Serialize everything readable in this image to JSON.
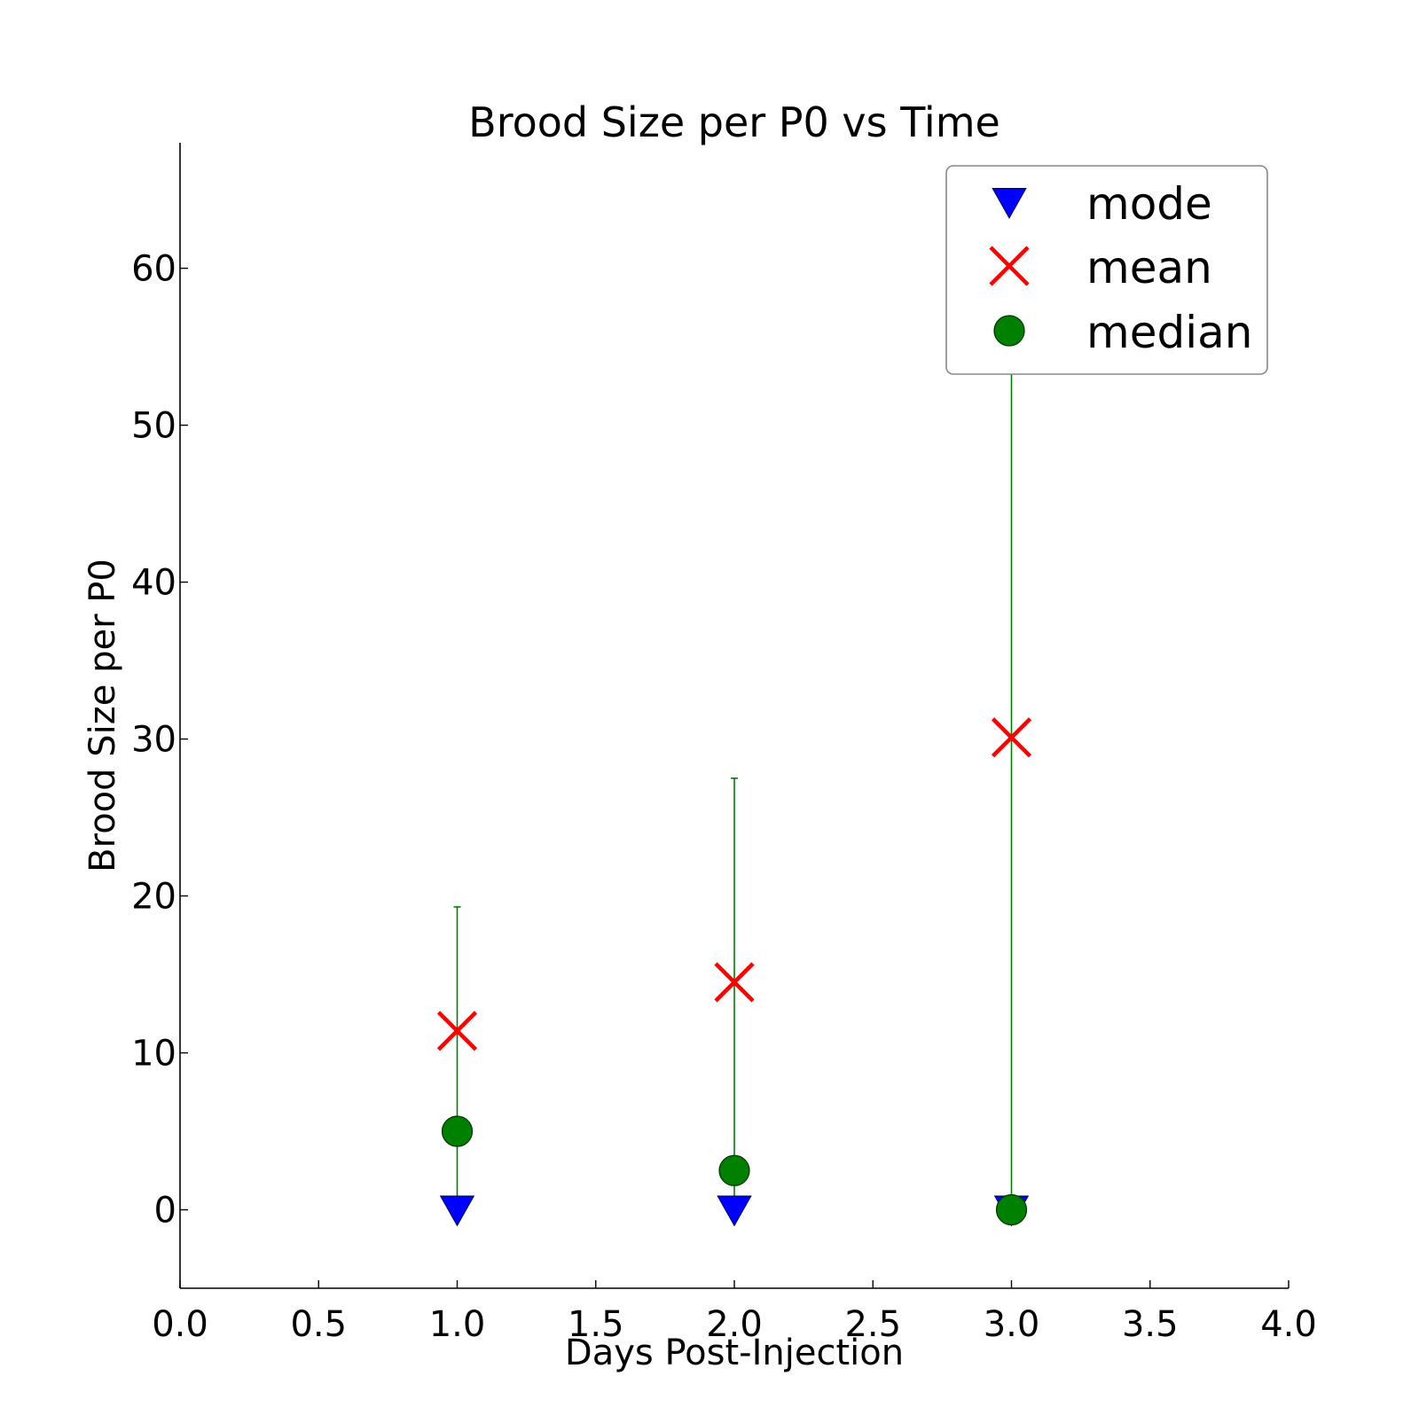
{
  "chart_data": {
    "type": "scatter",
    "title": "Brood Size per P0 vs Time",
    "xlabel": "Days Post-Injection",
    "ylabel": "Brood Size per P0",
    "xlim": [
      0.0,
      4.0
    ],
    "ylim": [
      -5,
      68
    ],
    "x_ticks": [
      "0.0",
      "0.5",
      "1.0",
      "1.5",
      "2.0",
      "2.5",
      "3.0",
      "3.5",
      "4.0"
    ],
    "y_ticks": [
      "0",
      "10",
      "20",
      "30",
      "40",
      "50",
      "60"
    ],
    "grid": false,
    "legend_position": "top-right",
    "series": [
      {
        "name": "mode",
        "marker": "triangle-down",
        "color": "#0000ff",
        "x": [
          1.0,
          2.0,
          3.0
        ],
        "y": [
          0,
          0,
          0
        ]
      },
      {
        "name": "mean",
        "marker": "x",
        "color": "#ff0000",
        "x": [
          1.0,
          2.0,
          3.0
        ],
        "y": [
          11.4,
          14.5,
          30.1
        ]
      },
      {
        "name": "median",
        "marker": "circle",
        "color": "#008000",
        "x": [
          1.0,
          2.0,
          3.0
        ],
        "y": [
          5.0,
          2.5,
          0.0
        ],
        "error_bars": {
          "color": "#008000",
          "upper": [
            19.3,
            27.5,
            57.6
          ],
          "lower": [
            0.0,
            0.0,
            0.0
          ]
        }
      }
    ]
  }
}
